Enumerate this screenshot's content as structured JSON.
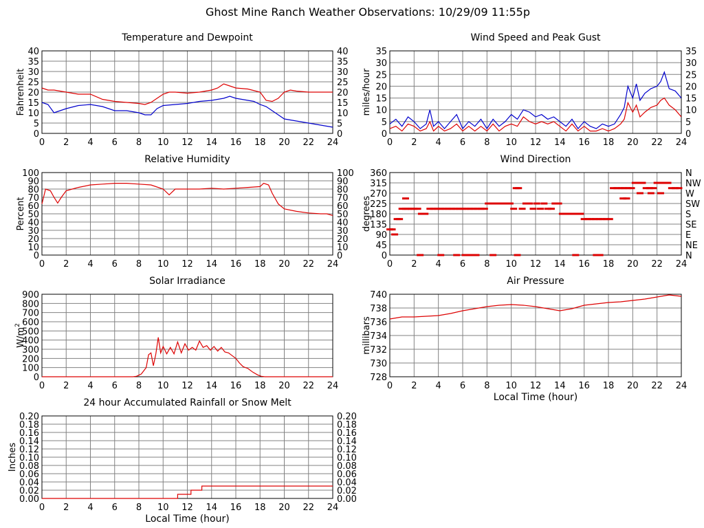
{
  "page_title": "Ghost Mine Ranch Weather Observations: 10/29/09 11:55p",
  "colors": {
    "red": "#dd0000",
    "blue": "#0000cc",
    "grid": "#808080"
  },
  "chart_data": [
    {
      "id": "temperature",
      "type": "line",
      "title": "Temperature and Dewpoint",
      "ylabel": "Fahrenheit",
      "xlabel": "",
      "xlim": [
        0,
        24
      ],
      "ylim": [
        0,
        40
      ],
      "yticks": [
        0,
        5,
        10,
        15,
        20,
        25,
        30,
        35,
        40
      ],
      "xticks": [
        0,
        2,
        4,
        6,
        8,
        10,
        12,
        14,
        16,
        18,
        20,
        22,
        24
      ],
      "right_axis": true,
      "grid": true,
      "series": [
        {
          "color": "#dd0000",
          "mode": "line",
          "x": [
            0,
            0.5,
            1,
            1.5,
            2,
            3,
            4,
            5,
            6,
            7,
            8,
            8.5,
            9,
            9.5,
            10,
            10.5,
            11,
            12,
            13,
            14,
            14.5,
            15,
            15.5,
            16,
            17,
            18,
            18.5,
            19,
            19.5,
            20,
            20.5,
            21,
            22,
            23,
            24
          ],
          "y": [
            22,
            21,
            21,
            20.5,
            20,
            19,
            19,
            16.5,
            15.5,
            15,
            14.5,
            14,
            15,
            17,
            19,
            20,
            20,
            19.5,
            20,
            21,
            22,
            24,
            23,
            22,
            21.5,
            20,
            16,
            15.5,
            17,
            20,
            21,
            20.5,
            20,
            20,
            20
          ]
        },
        {
          "color": "#0000cc",
          "mode": "line",
          "x": [
            0,
            0.5,
            1,
            1.5,
            2,
            3,
            4,
            5,
            6,
            7,
            8,
            8.5,
            9,
            9.5,
            10,
            11,
            12,
            13,
            14,
            15,
            15.5,
            16,
            17,
            17.5,
            18,
            18.5,
            19,
            19.5,
            20,
            21,
            22,
            23,
            24
          ],
          "y": [
            15,
            14,
            10,
            11,
            12,
            13.5,
            14,
            13,
            11,
            11,
            10,
            9,
            9,
            12,
            13.5,
            14,
            14.5,
            15.5,
            16,
            17,
            18,
            17,
            16,
            15.5,
            14,
            13,
            11,
            9,
            7,
            6,
            5,
            4,
            3
          ]
        }
      ]
    },
    {
      "id": "wind_speed",
      "type": "line",
      "title": "Wind Speed and Peak Gust",
      "ylabel": "miles/hour",
      "xlabel": "",
      "xlim": [
        0,
        24
      ],
      "ylim": [
        0,
        35
      ],
      "yticks": [
        0,
        5,
        10,
        15,
        20,
        25,
        30,
        35
      ],
      "xticks": [
        0,
        2,
        4,
        6,
        8,
        10,
        12,
        14,
        16,
        18,
        20,
        22,
        24
      ],
      "right_axis": true,
      "grid": true,
      "series": [
        {
          "color": "#0000cc",
          "mode": "line",
          "x": [
            0,
            0.5,
            1,
            1.5,
            2,
            2.5,
            3,
            3.3,
            3.6,
            4,
            4.5,
            5,
            5.5,
            6,
            6.5,
            7,
            7.5,
            8,
            8.5,
            9,
            9.5,
            10,
            10.5,
            11,
            11.5,
            12,
            12.5,
            13,
            13.5,
            14,
            14.5,
            15,
            15.5,
            16,
            16.5,
            17,
            17.5,
            18,
            18.5,
            19,
            19.3,
            19.6,
            20,
            20.3,
            20.6,
            21,
            21.5,
            22,
            22.3,
            22.6,
            23,
            23.5,
            24
          ],
          "y": [
            4,
            6,
            3,
            7,
            5,
            2,
            4,
            10,
            3,
            5,
            2,
            5,
            8,
            2,
            5,
            3,
            6,
            2,
            6,
            3,
            5,
            8,
            6,
            10,
            9,
            7,
            8,
            6,
            7,
            5,
            3,
            6,
            2,
            5,
            3,
            2,
            4,
            3,
            4,
            8,
            11,
            20,
            15,
            21,
            14,
            17,
            19,
            20,
            22,
            26,
            19,
            18,
            15
          ]
        },
        {
          "color": "#dd0000",
          "mode": "line",
          "x": [
            0,
            0.5,
            1,
            1.5,
            2,
            2.5,
            3,
            3.3,
            3.6,
            4,
            4.5,
            5,
            5.5,
            6,
            6.5,
            7,
            7.5,
            8,
            8.5,
            9,
            9.5,
            10,
            10.5,
            11,
            11.5,
            12,
            12.5,
            13,
            13.5,
            14,
            14.5,
            15,
            15.5,
            16,
            16.5,
            17,
            17.5,
            18,
            18.5,
            19,
            19.3,
            19.6,
            20,
            20.3,
            20.6,
            21,
            21.5,
            22,
            22.3,
            22.6,
            23,
            23.5,
            24
          ],
          "y": [
            2,
            3,
            1,
            4,
            3,
            1,
            2,
            5,
            1,
            3,
            1,
            2,
            4,
            1,
            3,
            1,
            3,
            1,
            4,
            1,
            3,
            4,
            3,
            7,
            5,
            4,
            5,
            4,
            5,
            3,
            1,
            4,
            1,
            3,
            1,
            1,
            2,
            1,
            2,
            4,
            6,
            13,
            9,
            12,
            7,
            9,
            11,
            12,
            14,
            15,
            12,
            10,
            7
          ]
        }
      ]
    },
    {
      "id": "humidity",
      "type": "line",
      "title": "Relative Humidity",
      "ylabel": "Percent",
      "xlabel": "",
      "xlim": [
        0,
        24
      ],
      "ylim": [
        0,
        100
      ],
      "yticks": [
        0,
        10,
        20,
        30,
        40,
        50,
        60,
        70,
        80,
        90,
        100
      ],
      "xticks": [
        0,
        2,
        4,
        6,
        8,
        10,
        12,
        14,
        16,
        18,
        20,
        22,
        24
      ],
      "right_axis": true,
      "grid": true,
      "series": [
        {
          "color": "#dd0000",
          "mode": "line",
          "x": [
            0,
            0.3,
            0.7,
            1,
            1.3,
            1.6,
            2,
            2.5,
            3,
            4,
            5,
            6,
            7,
            8,
            9,
            10,
            10.5,
            11,
            12,
            13,
            14,
            15,
            16,
            17,
            18,
            18.3,
            18.7,
            19,
            19.5,
            20,
            21,
            22,
            23,
            23.5,
            24
          ],
          "y": [
            62,
            80,
            78,
            70,
            63,
            70,
            78,
            80,
            82,
            85,
            86,
            87,
            87,
            86,
            85,
            80,
            73,
            80,
            80,
            80,
            81,
            80,
            81,
            82,
            83,
            87,
            85,
            75,
            62,
            56,
            53,
            51,
            50,
            50,
            48
          ]
        }
      ]
    },
    {
      "id": "wind_direction",
      "type": "scatter",
      "title": "Wind Direction",
      "ylabel": "degrees",
      "xlabel": "",
      "xlim": [
        0,
        24
      ],
      "ylim": [
        0,
        360
      ],
      "yticks": [
        0,
        45,
        90,
        135,
        180,
        225,
        270,
        315,
        360
      ],
      "xticks": [
        0,
        2,
        4,
        6,
        8,
        10,
        12,
        14,
        16,
        18,
        20,
        22,
        24
      ],
      "right_labels": [
        "N",
        "NE",
        "E",
        "SE",
        "S",
        "SW",
        "W",
        "NW",
        "N"
      ],
      "grid": true,
      "series": [
        {
          "color": "#dd0000",
          "mode": "dots",
          "x": [
            0,
            0.2,
            0.4,
            0.6,
            0.8,
            1.0,
            1.3,
            1.5,
            1.8,
            2.0,
            2.3,
            2.6,
            2.9,
            3.3,
            3.6,
            3.9,
            4.2,
            4.5,
            4.8,
            5.1,
            5.4,
            5.7,
            6.0,
            6.3,
            6.6,
            6.9,
            7.2,
            7.5,
            7.8,
            8.1,
            8.4,
            8.7,
            9.0,
            9.3,
            9.6,
            9.9,
            10.2,
            10.4,
            10.6,
            10.9,
            11.2,
            11.5,
            11.8,
            12.1,
            12.4,
            12.7,
            13.0,
            13.3,
            13.6,
            13.9,
            14.2,
            14.5,
            14.8,
            15.1,
            15.4,
            15.7,
            16.0,
            16.3,
            16.6,
            16.9,
            17.2,
            17.5,
            17.8,
            18.1,
            18.4,
            18.7,
            19.0,
            19.3,
            19.6,
            19.9,
            20.2,
            20.5,
            20.8,
            21.1,
            21.4,
            21.7,
            22.0,
            22.3,
            22.6,
            22.9,
            23.2,
            23.5,
            23.8,
            2.5,
            4.2,
            5.5,
            6.2,
            6.6,
            7.1,
            8.5,
            10.5,
            15.3,
            17.0,
            17.3,
            1.3,
            19.2,
            19.5,
            20.6,
            21.5,
            22.3
          ],
          "y": [
            112,
            112,
            90,
            157,
            157,
            202,
            202,
            202,
            202,
            202,
            202,
            180,
            180,
            202,
            202,
            202,
            202,
            202,
            202,
            202,
            202,
            202,
            202,
            202,
            202,
            202,
            202,
            202,
            202,
            225,
            225,
            225,
            225,
            225,
            225,
            225,
            202,
            292,
            292,
            202,
            225,
            225,
            202,
            225,
            202,
            225,
            202,
            202,
            225,
            225,
            180,
            180,
            180,
            180,
            180,
            180,
            157,
            157,
            157,
            157,
            157,
            157,
            157,
            157,
            292,
            292,
            292,
            292,
            292,
            292,
            315,
            315,
            315,
            292,
            292,
            292,
            315,
            315,
            315,
            315,
            292,
            292,
            292,
            0,
            0,
            0,
            0,
            0,
            0,
            0,
            0,
            0,
            0,
            0,
            247,
            247,
            247,
            270,
            270,
            270
          ]
        }
      ]
    },
    {
      "id": "solar",
      "type": "line",
      "title": "Solar Irradiance",
      "ylabel": "W/m",
      "ylabel_sup": "2",
      "xlabel": "",
      "xlim": [
        0,
        24
      ],
      "ylim": [
        0,
        900
      ],
      "yticks": [
        0,
        100,
        200,
        300,
        400,
        500,
        600,
        700,
        800,
        900
      ],
      "xticks": [
        0,
        2,
        4,
        6,
        8,
        10,
        12,
        14,
        16,
        18,
        20,
        22,
        24
      ],
      "right_axis": false,
      "grid": true,
      "series": [
        {
          "color": "#dd0000",
          "mode": "line",
          "x": [
            0,
            7.5,
            7.8,
            8.2,
            8.6,
            8.8,
            9.0,
            9.2,
            9.4,
            9.6,
            9.8,
            10.0,
            10.3,
            10.6,
            10.9,
            11.2,
            11.5,
            11.8,
            12.1,
            12.4,
            12.7,
            13.0,
            13.3,
            13.6,
            13.9,
            14.2,
            14.5,
            14.8,
            15.1,
            15.4,
            15.7,
            16.0,
            16.3,
            16.6,
            17.0,
            17.4,
            17.8,
            18.1,
            18.4,
            24
          ],
          "y": [
            0,
            0,
            5,
            30,
            100,
            240,
            260,
            120,
            250,
            430,
            260,
            330,
            250,
            320,
            250,
            380,
            260,
            360,
            290,
            320,
            290,
            390,
            320,
            340,
            290,
            330,
            280,
            320,
            270,
            260,
            230,
            200,
            150,
            110,
            90,
            50,
            20,
            5,
            0,
            0
          ]
        }
      ]
    },
    {
      "id": "pressure",
      "type": "line",
      "title": "Air Pressure",
      "ylabel": "millibars",
      "xlabel": "Local Time (hour)",
      "xlim": [
        0,
        24
      ],
      "ylim": [
        728,
        740
      ],
      "yticks": [
        728,
        730,
        732,
        734,
        736,
        738,
        740
      ],
      "xticks": [
        0,
        2,
        4,
        6,
        8,
        10,
        12,
        14,
        16,
        18,
        20,
        22,
        24
      ],
      "right_axis": false,
      "grid": true,
      "series": [
        {
          "color": "#dd0000",
          "mode": "line",
          "x": [
            0,
            1,
            2,
            3,
            4,
            5,
            6,
            7,
            8,
            9,
            10,
            11,
            12,
            13,
            14,
            15,
            16,
            17,
            18,
            19,
            20,
            21,
            22,
            23,
            24
          ],
          "y": [
            736.4,
            736.7,
            736.7,
            736.8,
            736.9,
            737.2,
            737.6,
            737.9,
            738.2,
            738.4,
            738.5,
            738.4,
            738.2,
            737.9,
            737.6,
            737.9,
            738.4,
            738.6,
            738.8,
            738.9,
            739.1,
            739.3,
            739.6,
            739.9,
            739.7
          ]
        }
      ]
    },
    {
      "id": "rainfall",
      "type": "line",
      "title": "24 hour Accumulated Rainfall or Snow Melt",
      "ylabel": "Inches",
      "xlabel": "Local Time (hour)",
      "xlim": [
        0,
        24
      ],
      "ylim": [
        0,
        0.2
      ],
      "yticks": [
        "0.00",
        "0.02",
        "0.04",
        "0.06",
        "0.08",
        "0.10",
        "0.12",
        "0.14",
        "0.16",
        "0.18",
        "0.20"
      ],
      "xticks": [
        0,
        2,
        4,
        6,
        8,
        10,
        12,
        14,
        16,
        18,
        20,
        22,
        24
      ],
      "right_axis": true,
      "grid": true,
      "series": [
        {
          "color": "#dd0000",
          "mode": "step",
          "x": [
            0,
            11.2,
            11.2,
            12.3,
            12.3,
            13.2,
            13.2,
            24
          ],
          "y": [
            0,
            0,
            0.01,
            0.01,
            0.02,
            0.02,
            0.03,
            0.03
          ]
        }
      ]
    }
  ]
}
